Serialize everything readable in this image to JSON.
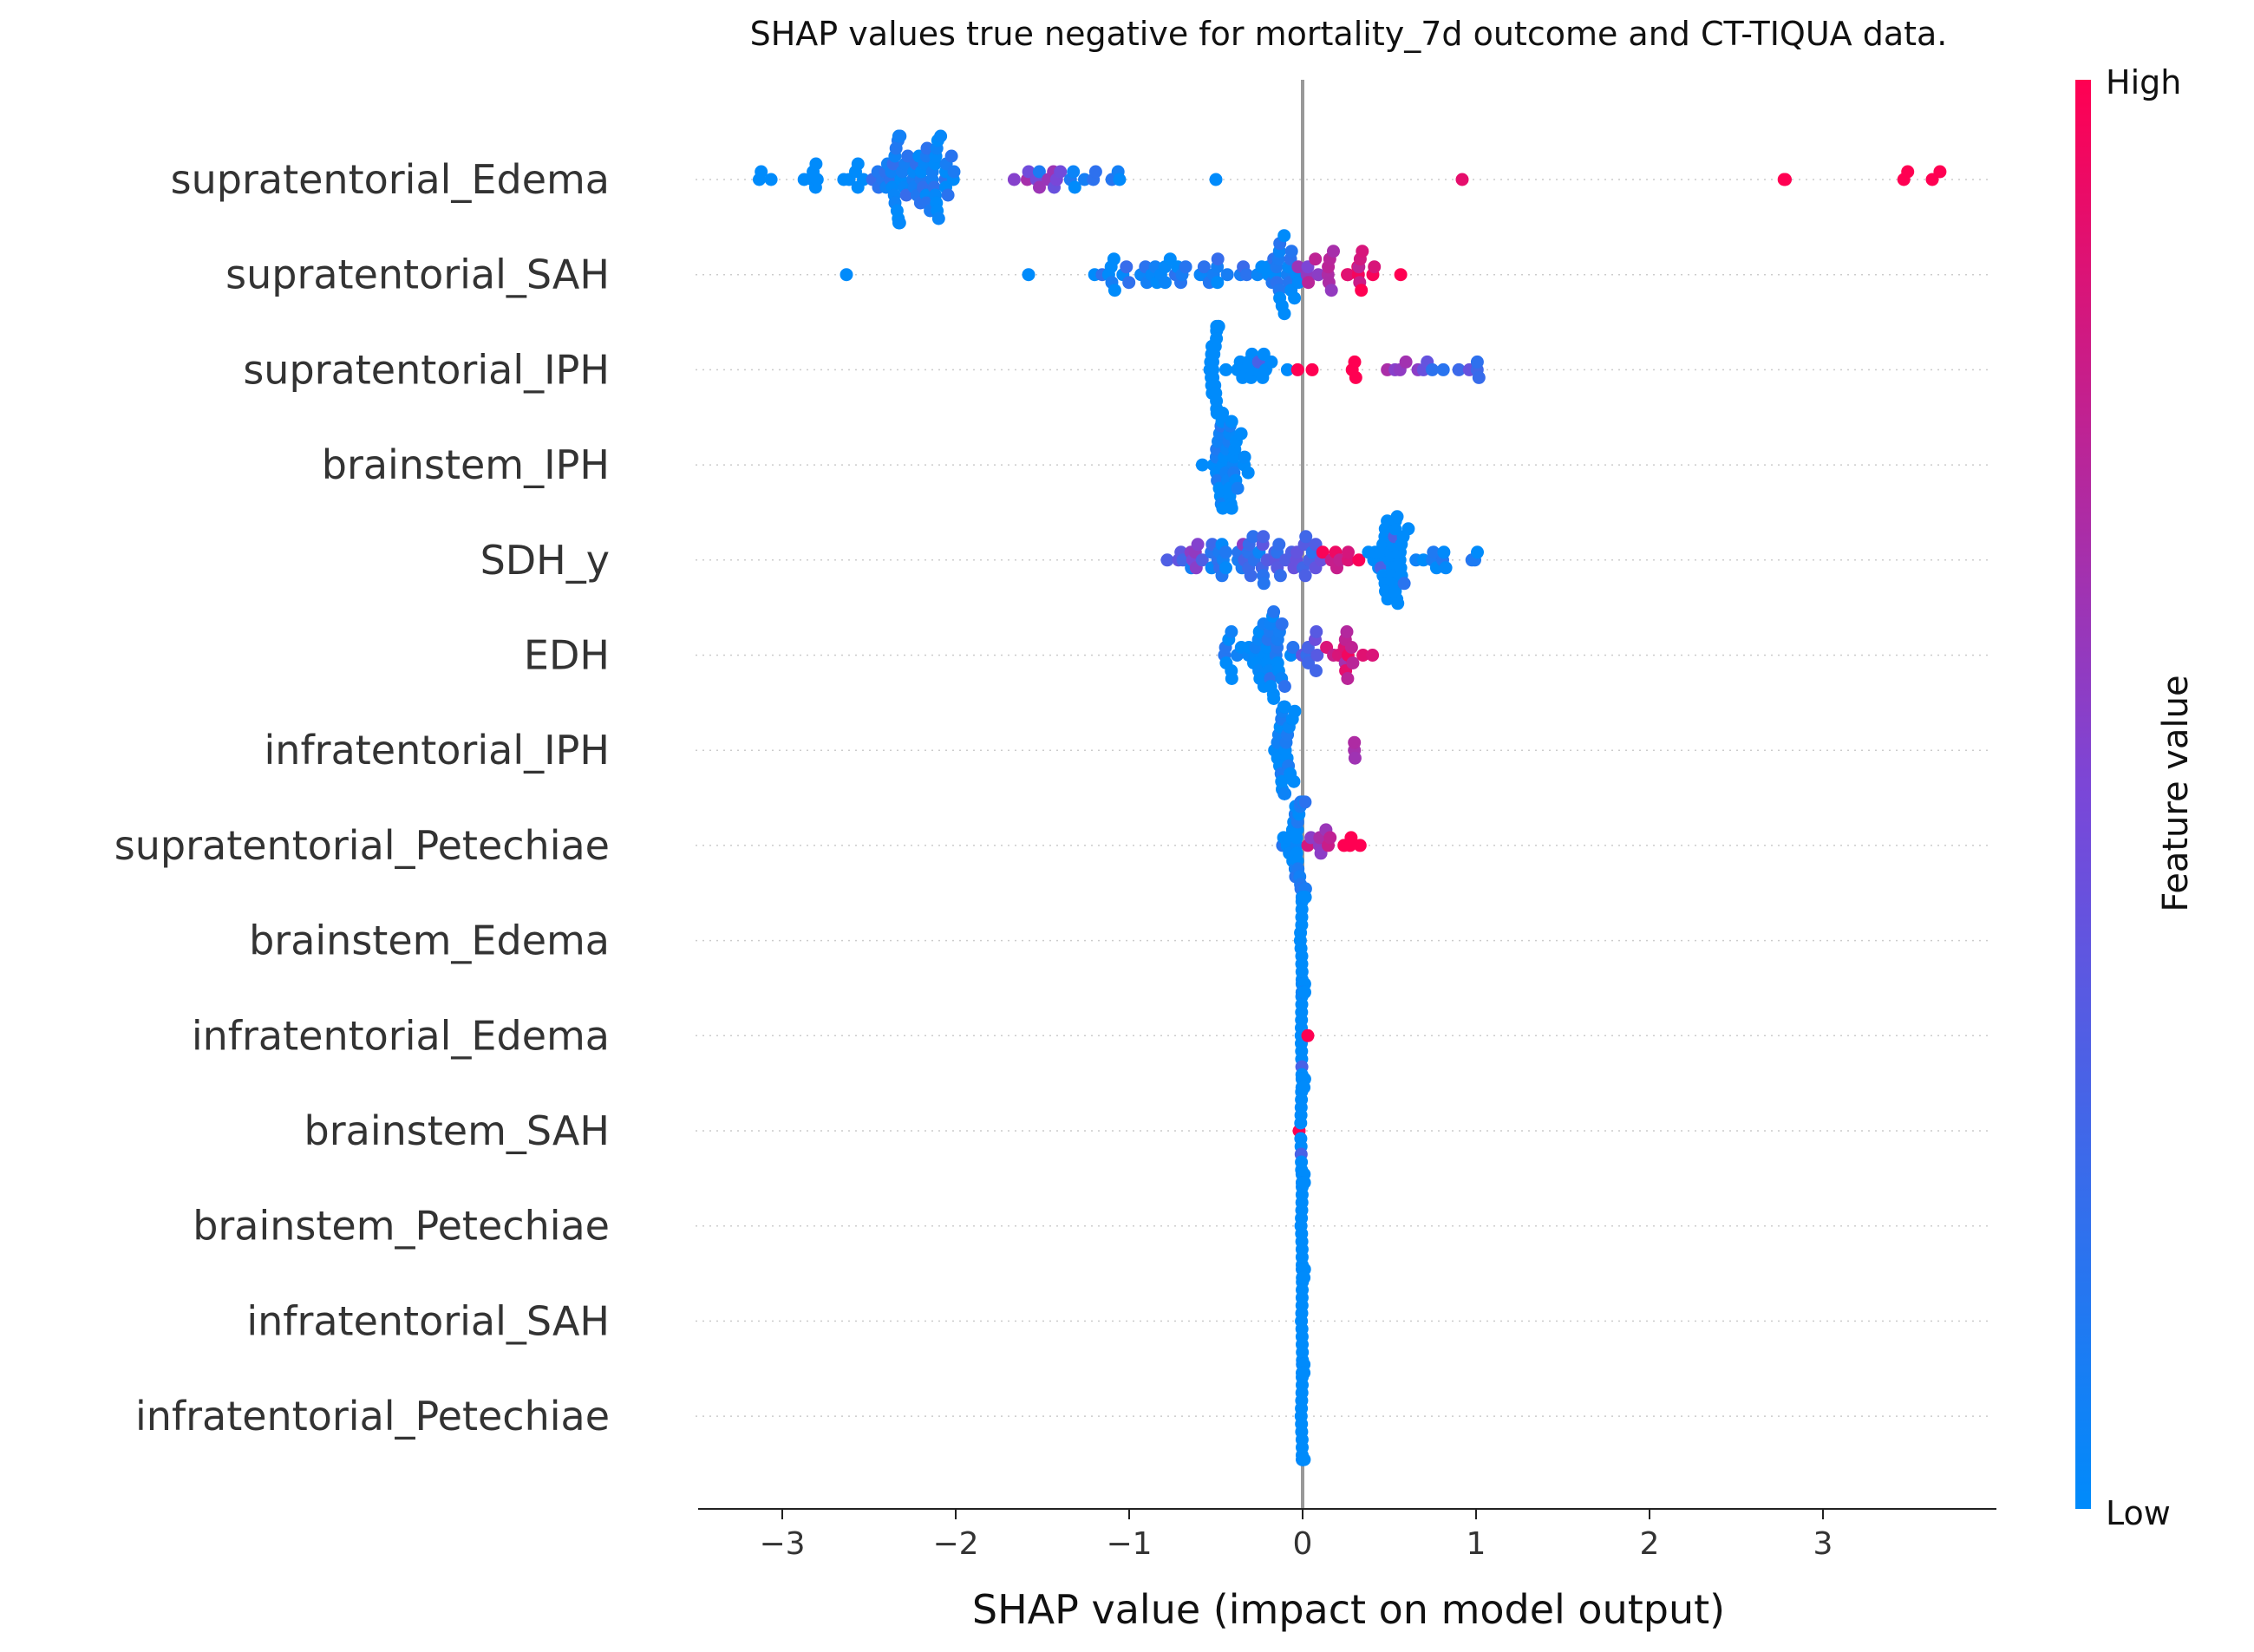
{
  "chart_data": {
    "type": "scatter",
    "subtype": "shap-beeswarm",
    "title": "SHAP values true negative for mortality_7d outcome and CT-TIQUA data.",
    "xlabel": "SHAP value (impact on model output)",
    "xlim": [
      -3.5,
      3.95
    ],
    "xticks": [
      -3,
      -2,
      -1,
      0,
      1,
      2,
      3
    ],
    "xtick_labels": [
      "−3",
      "−2",
      "−1",
      "0",
      "1",
      "2",
      "3"
    ],
    "zero_line": 0,
    "colorbar": {
      "label": "Feature value",
      "high_label": "High",
      "low_label": "Low",
      "low_color": "#008bfb",
      "high_color": "#ff0052"
    },
    "features": [
      {
        "name": "supratentorial_Edema",
        "clusters": [
          {
            "v": -3.12,
            "n": 3,
            "s": 0.04,
            "h": 0
          },
          {
            "v": -2.82,
            "n": 6,
            "s": 0.05,
            "h": 0
          },
          {
            "v": -2.55,
            "n": 6,
            "s": 0.06,
            "h": 0
          },
          {
            "v": -2.3,
            "n": 40,
            "s": 0.09,
            "h": 0.08
          },
          {
            "v": -2.1,
            "n": 25,
            "s": 0.06,
            "h": 0.05
          },
          {
            "v": -1.55,
            "n": 10,
            "s": 0.12,
            "h": 0.55
          },
          {
            "v": -1.2,
            "n": 10,
            "s": 0.18,
            "h": 0.1
          },
          {
            "v": -0.5,
            "n": 1,
            "s": 0,
            "h": 0
          },
          {
            "v": 0.92,
            "n": 1,
            "s": 0,
            "h": 0.85
          },
          {
            "v": 2.8,
            "n": 2,
            "s": 0.05,
            "h": 1
          },
          {
            "v": 3.48,
            "n": 4,
            "s": 0.13,
            "h": 1
          }
        ]
      },
      {
        "name": "supratentorial_SAH",
        "clusters": [
          {
            "v": -2.63,
            "n": 1,
            "s": 0,
            "h": 0
          },
          {
            "v": -1.58,
            "n": 1,
            "s": 0,
            "h": 0
          },
          {
            "v": -1.05,
            "n": 14,
            "s": 0.12,
            "h": 0.05
          },
          {
            "v": -0.75,
            "n": 14,
            "s": 0.12,
            "h": 0.1
          },
          {
            "v": -0.4,
            "n": 10,
            "s": 0.1,
            "h": 0.1
          },
          {
            "v": -0.12,
            "n": 25,
            "s": 0.05,
            "h": 0.05
          },
          {
            "v": 0.12,
            "n": 12,
            "s": 0.08,
            "h": 0.65
          },
          {
            "v": 0.35,
            "n": 12,
            "s": 0.1,
            "h": 0.9
          }
        ]
      },
      {
        "name": "supratentorial_IPH",
        "clusters": [
          {
            "v": -0.5,
            "n": 25,
            "s": 0.02,
            "h": 0
          },
          {
            "v": -0.3,
            "n": 14,
            "s": 0.08,
            "h": 0
          },
          {
            "v": 0.25,
            "n": 5,
            "s": 0.08,
            "h": 1
          },
          {
            "v": 0.6,
            "n": 5,
            "s": 0.08,
            "h": 0.65
          },
          {
            "v": 0.85,
            "n": 6,
            "s": 0.1,
            "h": 0.3
          },
          {
            "v": 1.0,
            "n": 3,
            "s": 0.02,
            "h": 0.2
          }
        ]
      },
      {
        "name": "brainstem_IPH",
        "clusters": [
          {
            "v": -0.45,
            "n": 40,
            "s": 0.05,
            "h": 0.02
          }
        ]
      },
      {
        "name": "SDH_y",
        "clusters": [
          {
            "v": -0.62,
            "n": 10,
            "s": 0.1,
            "h": 0.45
          },
          {
            "v": -0.4,
            "n": 25,
            "s": 0.1,
            "h": 0.15
          },
          {
            "v": -0.1,
            "n": 25,
            "s": 0.12,
            "h": 0.3
          },
          {
            "v": 0.2,
            "n": 8,
            "s": 0.08,
            "h": 0.85
          },
          {
            "v": 0.5,
            "n": 35,
            "s": 0.05,
            "h": 0
          },
          {
            "v": 0.8,
            "n": 12,
            "s": 0.1,
            "h": 0.03
          }
        ]
      },
      {
        "name": "EDH",
        "clusters": [
          {
            "v": -0.45,
            "n": 10,
            "s": 0.1,
            "h": 0.05
          },
          {
            "v": -0.2,
            "n": 35,
            "s": 0.06,
            "h": 0.05
          },
          {
            "v": 0.05,
            "n": 8,
            "s": 0.05,
            "h": 0.3
          },
          {
            "v": 0.25,
            "n": 14,
            "s": 0.08,
            "h": 0.8
          }
        ]
      },
      {
        "name": "infratentorial_IPH",
        "clusters": [
          {
            "v": -0.1,
            "n": 30,
            "s": 0.04,
            "h": 0.02
          },
          {
            "v": 0.28,
            "n": 3,
            "s": 0.02,
            "h": 0.75
          }
        ]
      },
      {
        "name": "supratentorial_Petechiae",
        "clusters": [
          {
            "v": -0.12,
            "n": 3,
            "s": 0.02,
            "h": 0
          },
          {
            "v": -0.03,
            "n": 30,
            "s": 0.03,
            "h": 0.05
          },
          {
            "v": 0.12,
            "n": 8,
            "s": 0.06,
            "h": 0.7
          },
          {
            "v": 0.27,
            "n": 4,
            "s": 0.04,
            "h": 1
          }
        ]
      },
      {
        "name": "brainstem_Edema",
        "clusters": [
          {
            "v": 0.0,
            "n": 40,
            "s": 0.005,
            "h": 0
          }
        ]
      },
      {
        "name": "infratentorial_Edema",
        "clusters": [
          {
            "v": 0.0,
            "n": 40,
            "s": 0.005,
            "h": 0
          },
          {
            "v": 0.03,
            "n": 1,
            "s": 0,
            "h": 1
          }
        ]
      },
      {
        "name": "brainstem_SAH",
        "clusters": [
          {
            "v": 0.0,
            "n": 40,
            "s": 0.005,
            "h": 0
          },
          {
            "v": -0.02,
            "n": 1,
            "s": 0,
            "h": 1
          }
        ]
      },
      {
        "name": "brainstem_Petechiae",
        "clusters": [
          {
            "v": 0.0,
            "n": 45,
            "s": 0.004,
            "h": 0
          }
        ]
      },
      {
        "name": "infratentorial_SAH",
        "clusters": [
          {
            "v": 0.0,
            "n": 45,
            "s": 0.004,
            "h": 0
          }
        ]
      },
      {
        "name": "infratentorial_Petechiae",
        "clusters": [
          {
            "v": 0.0,
            "n": 45,
            "s": 0.004,
            "h": 0
          }
        ]
      }
    ]
  }
}
